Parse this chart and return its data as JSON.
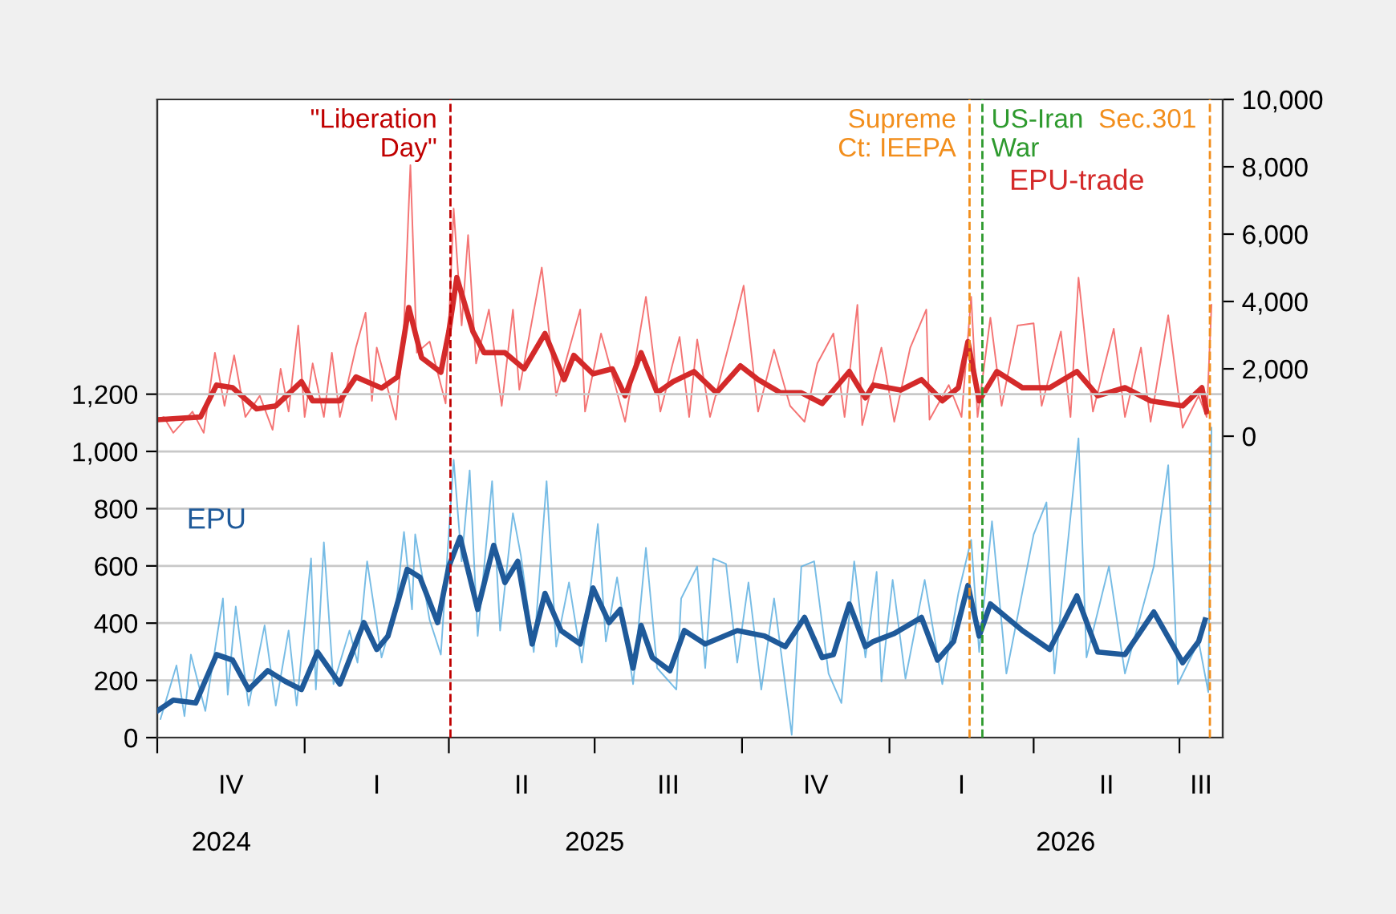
{
  "chart_data": {
    "type": "line",
    "xlim": [
      "2024-10-01",
      "2026-07-28"
    ],
    "xticks": [
      {
        "value": "2024-10-01",
        "label": null
      },
      {
        "value": "2025-01-01",
        "label": null
      },
      {
        "value": "2025-04-01",
        "label": null
      },
      {
        "value": "2025-07-01",
        "label": null
      },
      {
        "value": "2025-10-01",
        "label": null
      },
      {
        "value": "2026-01-01",
        "label": null
      },
      {
        "value": "2026-04-01",
        "label": null
      },
      {
        "value": "2026-07-01",
        "label": null
      },
      {
        "value": "2024-11-10",
        "label": "2024"
      },
      {
        "value": "2025-07-01",
        "label": "2025"
      },
      {
        "value": "2026-04-21",
        "label": "2026"
      }
    ],
    "ylim": [
      0,
      2230
    ],
    "yticks": [
      0,
      200,
      400,
      600,
      800,
      {
        "value": 1000,
        "label": "1,000"
      },
      {
        "value": 1200,
        "label": "1,200"
      }
    ],
    "y2lim": [
      -8950,
      10000
    ],
    "y2ticks": [
      0,
      {
        "value": 2000,
        "label": "2,000"
      },
      {
        "value": 4000,
        "label": "4,000"
      },
      {
        "value": 6000,
        "label": "6,000"
      },
      {
        "value": 8000,
        "label": "8,000"
      },
      {
        "value": 10000,
        "label": "10,000"
      }
    ],
    "grid": "y",
    "legend": false,
    "annotations": [
      "IV",
      "I",
      "II",
      "III",
      "IV",
      "I",
      "II",
      "III"
    ],
    "series": [
      {
        "color": "#f25c5c",
        "axis": "y2",
        "x": [
          "2024-10-01",
          "2024-10-05",
          "2024-10-11",
          "2024-10-23",
          "2024-10-30",
          "2024-11-06",
          "2024-11-12",
          "2024-11-18",
          "2024-11-25",
          "2024-12-04",
          "2024-12-12",
          "2024-12-17",
          "2024-12-22",
          "2024-12-28",
          "2025-01-01",
          "2025-01-06",
          "2025-01-13",
          "2025-01-18",
          "2025-01-23",
          "2025-02-02",
          "2025-02-08",
          "2025-02-12",
          "2025-02-15",
          "2025-02-27",
          "2025-03-04",
          "2025-03-08",
          "2025-03-12",
          "2025-03-20",
          "2025-03-30",
          "2025-04-04",
          "2025-04-09",
          "2025-04-13",
          "2025-04-18",
          "2025-04-26",
          "2025-05-04",
          "2025-05-11",
          "2025-05-15",
          "2025-05-29",
          "2025-06-07",
          "2025-06-22",
          "2025-06-25",
          "2025-07-05",
          "2025-07-20",
          "2025-08-02",
          "2025-08-11",
          "2025-08-23",
          "2025-08-29",
          "2025-09-03",
          "2025-09-11",
          "2025-09-26",
          "2025-10-02",
          "2025-10-11",
          "2025-10-21",
          "2025-10-31",
          "2025-11-09",
          "2025-11-17",
          "2025-11-27",
          "2025-12-04",
          "2025-12-12",
          "2025-12-15",
          "2025-12-27",
          "2026-01-04",
          "2026-01-14",
          "2026-01-24",
          "2026-01-26",
          "2026-02-07",
          "2026-02-15",
          "2026-02-21",
          "2026-02-25",
          "2026-03-05",
          "2026-03-12",
          "2026-03-22",
          "2026-04-01",
          "2026-04-06",
          "2026-04-18",
          "2026-04-24",
          "2026-04-29",
          "2026-05-08",
          "2026-05-21",
          "2026-05-28",
          "2026-06-07",
          "2026-06-13",
          "2026-06-24",
          "2026-07-03",
          "2026-07-13",
          "2026-07-18",
          "2026-07-21"
        ],
        "values": [
          490,
          570,
          100,
          730,
          100,
          2480,
          900,
          2400,
          570,
          1200,
          190,
          2000,
          730,
          3290,
          570,
          2160,
          570,
          2480,
          570,
          2630,
          3670,
          1050,
          2630,
          490,
          3290,
          8050,
          2480,
          2810,
          970,
          6760,
          3290,
          5970,
          2160,
          3760,
          900,
          3760,
          1380,
          5010,
          1200,
          3760,
          730,
          3050,
          430,
          4140,
          730,
          2950,
          570,
          2870,
          570,
          3290,
          4470,
          730,
          2570,
          900,
          430,
          2160,
          3050,
          570,
          3900,
          330,
          2630,
          430,
          2630,
          3760,
          490,
          1520,
          570,
          4140,
          570,
          3520,
          900,
          3290,
          3350,
          900,
          3110,
          570,
          4710,
          730,
          3190,
          570,
          2630,
          430,
          3590,
          250,
          1200,
          570,
          3900
        ]
      },
      {
        "name": "EPU-trade",
        "color": "#d42a2a",
        "axis": "y2",
        "x": [
          "2024-10-01",
          "2024-10-28",
          "2024-11-07",
          "2024-11-17",
          "2024-12-02",
          "2024-12-14",
          "2024-12-30",
          "2025-01-06",
          "2025-01-23",
          "2025-02-02",
          "2025-02-18",
          "2025-02-28",
          "2025-03-07",
          "2025-03-15",
          "2025-03-27",
          "2025-04-01",
          "2025-04-06",
          "2025-04-16",
          "2025-04-23",
          "2025-05-06",
          "2025-05-18",
          "2025-05-31",
          "2025-06-12",
          "2025-06-18",
          "2025-06-30",
          "2025-07-12",
          "2025-07-20",
          "2025-07-30",
          "2025-08-09",
          "2025-08-19",
          "2025-09-01",
          "2025-09-15",
          "2025-09-30",
          "2025-10-11",
          "2025-10-25",
          "2025-11-07",
          "2025-11-20",
          "2025-12-07",
          "2025-12-17",
          "2025-12-22",
          "2026-01-08",
          "2026-01-21",
          "2026-02-03",
          "2026-02-13",
          "2026-02-19",
          "2026-02-26",
          "2026-03-09",
          "2026-03-25",
          "2026-04-11",
          "2026-04-28",
          "2026-05-11",
          "2026-05-28",
          "2026-06-13",
          "2026-07-03",
          "2026-07-15",
          "2026-07-18"
        ],
        "values": [
          490,
          570,
          1520,
          1440,
          810,
          900,
          1620,
          1050,
          1050,
          1760,
          1430,
          1760,
          3820,
          2330,
          1900,
          3110,
          4710,
          3110,
          2480,
          2480,
          2000,
          3050,
          1680,
          2400,
          1850,
          2000,
          1200,
          2480,
          1290,
          1620,
          1920,
          1290,
          2090,
          1680,
          1290,
          1290,
          970,
          1920,
          1140,
          1520,
          1370,
          1680,
          1050,
          1440,
          2810,
          1050,
          1920,
          1440,
          1440,
          1920,
          1200,
          1440,
          1050,
          900,
          1440,
          730
        ]
      },
      {
        "color": "#5fb0e0",
        "axis": "y",
        "x": [
          "2024-10-03",
          "2024-10-13",
          "2024-10-18",
          "2024-10-22",
          "2024-10-31",
          "2024-11-11",
          "2024-11-14",
          "2024-11-19",
          "2024-11-27",
          "2024-12-07",
          "2024-12-14",
          "2024-12-22",
          "2024-12-27",
          "2025-01-05",
          "2025-01-08",
          "2025-01-13",
          "2025-01-19",
          "2025-01-29",
          "2025-02-03",
          "2025-02-09",
          "2025-02-18",
          "2025-02-27",
          "2025-03-04",
          "2025-03-09",
          "2025-03-11",
          "2025-03-20",
          "2025-03-27",
          "2025-04-04",
          "2025-04-09",
          "2025-04-14",
          "2025-04-19",
          "2025-04-28",
          "2025-05-03",
          "2025-05-11",
          "2025-05-16",
          "2025-05-24",
          "2025-06-01",
          "2025-06-07",
          "2025-06-15",
          "2025-06-23",
          "2025-07-03",
          "2025-07-08",
          "2025-07-15",
          "2025-07-25",
          "2025-08-02",
          "2025-08-09",
          "2025-08-21",
          "2025-08-24",
          "2025-09-03",
          "2025-09-08",
          "2025-09-13",
          "2025-09-21",
          "2025-09-28",
          "2025-10-05",
          "2025-10-13",
          "2025-10-21",
          "2025-11-01",
          "2025-11-07",
          "2025-11-15",
          "2025-11-24",
          "2025-12-02",
          "2025-12-10",
          "2025-12-17",
          "2025-12-24",
          "2025-12-27",
          "2026-01-03",
          "2026-01-11",
          "2026-01-23",
          "2026-02-03",
          "2026-02-13",
          "2026-02-21",
          "2026-02-26",
          "2026-03-06",
          "2026-03-15",
          "2026-04-01",
          "2026-04-09",
          "2026-04-14",
          "2026-04-29",
          "2026-05-04",
          "2026-05-18",
          "2026-05-28",
          "2026-06-15",
          "2026-06-24",
          "2026-06-30",
          "2026-07-13",
          "2026-07-19",
          "2026-07-21"
        ],
        "values": [
          65,
          252,
          75,
          290,
          93,
          486,
          150,
          458,
          112,
          392,
          112,
          374,
          112,
          626,
          168,
          682,
          187,
          374,
          262,
          616,
          280,
          458,
          719,
          448,
          710,
          411,
          290,
          971,
          616,
          934,
          355,
          896,
          374,
          784,
          635,
          299,
          896,
          318,
          542,
          262,
          747,
          336,
          560,
          187,
          663,
          243,
          168,
          486,
          598,
          243,
          626,
          607,
          262,
          542,
          168,
          486,
          10,
          598,
          616,
          224,
          121,
          616,
          280,
          579,
          196,
          551,
          206,
          551,
          187,
          504,
          691,
          299,
          756,
          224,
          710,
          822,
          224,
          1046,
          280,
          598,
          224,
          598,
          952,
          187,
          336,
          159,
          1083
        ]
      },
      {
        "name": "EPU",
        "color": "#1f5a9a",
        "axis": "y",
        "x": [
          "2024-10-01",
          "2024-10-11",
          "2024-10-25",
          "2024-11-07",
          "2024-11-17",
          "2024-11-27",
          "2024-12-09",
          "2024-12-20",
          "2024-12-30",
          "2025-01-09",
          "2025-01-23",
          "2025-02-07",
          "2025-02-15",
          "2025-02-22",
          "2025-03-06",
          "2025-03-14",
          "2025-03-25",
          "2025-04-01",
          "2025-04-08",
          "2025-04-19",
          "2025-04-29",
          "2025-05-06",
          "2025-05-14",
          "2025-05-23",
          "2025-05-31",
          "2025-06-10",
          "2025-06-22",
          "2025-06-30",
          "2025-07-10",
          "2025-07-17",
          "2025-07-25",
          "2025-07-30",
          "2025-08-06",
          "2025-08-17",
          "2025-08-26",
          "2025-09-08",
          "2025-09-28",
          "2025-10-15",
          "2025-10-28",
          "2025-11-09",
          "2025-11-20",
          "2025-11-27",
          "2025-12-07",
          "2025-12-17",
          "2025-12-22",
          "2026-01-04",
          "2026-01-21",
          "2026-01-31",
          "2026-02-10",
          "2026-02-19",
          "2026-02-26",
          "2026-03-05",
          "2026-03-25",
          "2026-04-11",
          "2026-04-28",
          "2026-05-11",
          "2026-05-28",
          "2026-06-15",
          "2026-07-03",
          "2026-07-13",
          "2026-07-17"
        ],
        "values": [
          93,
          131,
          121,
          290,
          271,
          168,
          234,
          196,
          168,
          299,
          187,
          402,
          308,
          355,
          588,
          560,
          402,
          598,
          700,
          448,
          672,
          542,
          616,
          327,
          504,
          374,
          327,
          523,
          402,
          448,
          243,
          392,
          280,
          234,
          374,
          327,
          374,
          355,
          318,
          420,
          280,
          290,
          467,
          318,
          336,
          364,
          420,
          271,
          336,
          532,
          355,
          467,
          374,
          308,
          495,
          299,
          290,
          439,
          262,
          336,
          411
        ]
      }
    ],
    "ref_lines": [
      {
        "axis": "x",
        "value": "2025-04-02",
        "label": "\"Liberation\nDay\"",
        "color": "#c00000",
        "line_style": "dashed"
      },
      {
        "axis": "x",
        "value": "2026-02-20",
        "label": "Supreme\nCt: IEEPA",
        "color": "#f28e1c",
        "line_style": "dashed"
      },
      {
        "axis": "x",
        "value": "2026-02-28",
        "label": "US-Iran\nWar",
        "color": "#2e9a2e",
        "line_style": "dashed"
      },
      {
        "axis": "x",
        "value": "2026-07-20",
        "label": "Sec.301",
        "color": "#f28e1c",
        "line_style": "dashed"
      }
    ]
  }
}
